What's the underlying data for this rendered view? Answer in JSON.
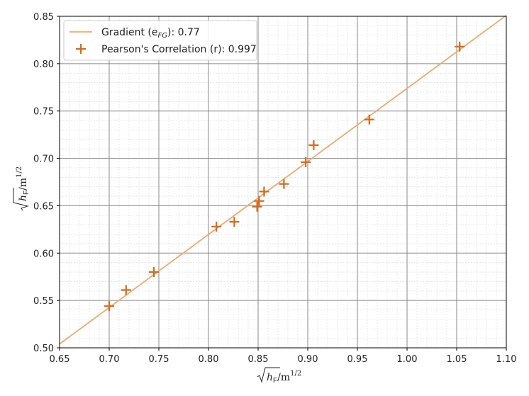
{
  "chart_data": {
    "type": "scatter",
    "title": "",
    "xlabel": "√h_F/m^1/2",
    "ylabel": "√h_F/m^1/2",
    "xlim": [
      0.65,
      1.1
    ],
    "ylim": [
      0.5,
      0.85
    ],
    "x_ticks": [
      "0.65",
      "0.70",
      "0.75",
      "0.80",
      "0.85",
      "0.90",
      "0.95",
      "1.00",
      "1.05",
      "1.10"
    ],
    "y_ticks": [
      "0.50",
      "0.55",
      "0.60",
      "0.65",
      "0.70",
      "0.75",
      "0.80",
      "0.85"
    ],
    "grid": true,
    "minor_grid": true,
    "legend_position": "top-left",
    "series": [
      {
        "name": "Gradient (e_FG): 0.77",
        "kind": "line",
        "color": "#f2a86a",
        "x": [
          0.65,
          1.1
        ],
        "y": [
          0.504,
          0.851
        ]
      },
      {
        "name": "Pearson's Correlation (r): 0.997",
        "kind": "scatter",
        "marker": "plus",
        "color": "#d9681a",
        "x": [
          0.7,
          0.717,
          0.745,
          0.808,
          0.826,
          0.849,
          0.851,
          0.856,
          0.876,
          0.898,
          0.906,
          0.962,
          1.053
        ],
        "y": [
          0.544,
          0.561,
          0.58,
          0.628,
          0.633,
          0.649,
          0.655,
          0.665,
          0.673,
          0.696,
          0.714,
          0.741,
          0.818
        ]
      }
    ]
  },
  "legend": {
    "line_label": "Gradient (e",
    "line_label_sub": "FG",
    "line_label_end": "): 0.77",
    "scatter_label": "Pearson's Correlation (r): 0.997"
  },
  "axes": {
    "x_label_root": "h",
    "x_label_sub": "F",
    "x_label_unit": "/m",
    "x_label_exp": "1/2",
    "y_label_root": "h",
    "y_label_sub": "F",
    "y_label_unit": "/m",
    "y_label_exp": "1/2"
  }
}
